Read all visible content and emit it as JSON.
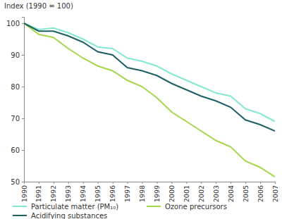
{
  "chart_data": {
    "type": "line",
    "ylabel": "Index (1990 = 100)",
    "x": [
      1990,
      1991,
      1992,
      1993,
      1994,
      1995,
      1996,
      1997,
      1998,
      1999,
      2000,
      2001,
      2002,
      2003,
      2004,
      2005,
      2006,
      2007
    ],
    "xlim": [
      1990,
      2007
    ],
    "xticks": [
      1990,
      1991,
      1992,
      1993,
      1994,
      1995,
      1996,
      1997,
      1998,
      1999,
      2000,
      2001,
      2002,
      2003,
      2004,
      2005,
      2006,
      2007
    ],
    "ylim": [
      50,
      102
    ],
    "yticks": [
      50,
      60,
      70,
      80,
      90,
      100
    ],
    "grid": false,
    "legend": "bottom",
    "series": [
      {
        "name": "Particulate matter (PM₁₀)",
        "color": "#86e8d2",
        "values": [
          100,
          98,
          98.5,
          97,
          95,
          92.5,
          92,
          89,
          88,
          86.5,
          84,
          82,
          80,
          78,
          77,
          73,
          71.5,
          69
        ]
      },
      {
        "name": "Acidifying substances",
        "color": "#1d5f63",
        "values": [
          100,
          97.5,
          97.5,
          96,
          94,
          91,
          90,
          86,
          85,
          83.5,
          81,
          79,
          77,
          75.5,
          73.5,
          69.5,
          68,
          66
        ]
      },
      {
        "name": "Ozone precursors",
        "color": "#a6d64a",
        "values": [
          100,
          96.5,
          95.5,
          92,
          89,
          86.5,
          85,
          82,
          80,
          76.5,
          72,
          69,
          66,
          63,
          61,
          56.5,
          54.5,
          51.5
        ]
      }
    ]
  }
}
